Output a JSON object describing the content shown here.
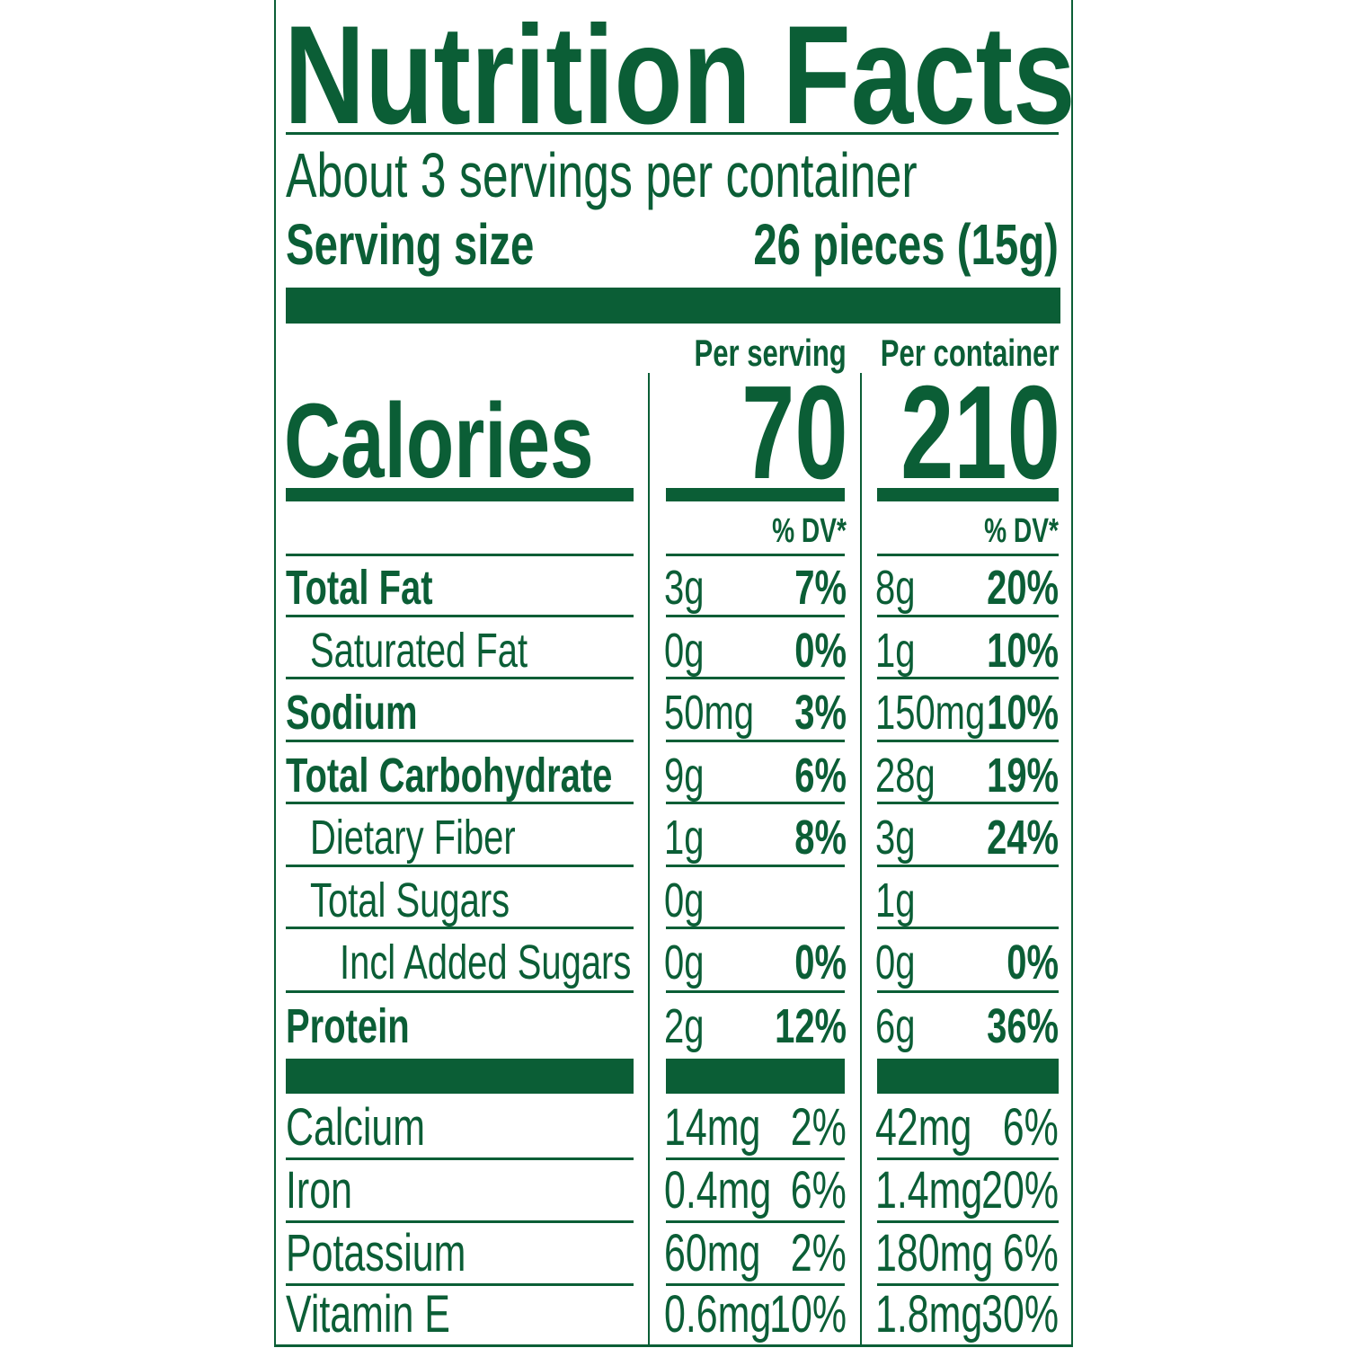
{
  "title": "Nutrition Facts",
  "servings_per_container": "About 3 servings per container",
  "serving_size": {
    "label": "Serving size",
    "value": "26 pieces (15g)"
  },
  "columns": {
    "per_serving": {
      "header": "Per serving",
      "calories": "70",
      "dv_header": "% DV*"
    },
    "per_container": {
      "header": "Per container",
      "calories": "210",
      "dv_header": "% DV*"
    }
  },
  "calories_label": "Calories",
  "nutrients": [
    {
      "name": "Total Fat",
      "bold": true,
      "indent": 0,
      "serving_amount": "3g",
      "serving_dv": "7%",
      "container_amount": "8g",
      "container_dv": "20%"
    },
    {
      "name": "Saturated Fat",
      "bold": false,
      "indent": 1,
      "serving_amount": "0g",
      "serving_dv": "0%",
      "container_amount": "1g",
      "container_dv": "10%"
    },
    {
      "name": "Sodium",
      "bold": true,
      "indent": 0,
      "serving_amount": "50mg",
      "serving_dv": "3%",
      "container_amount": "150mg",
      "container_dv": "10%"
    },
    {
      "name": "Total Carbohydrate",
      "bold": true,
      "indent": 0,
      "serving_amount": "9g",
      "serving_dv": "6%",
      "container_amount": "28g",
      "container_dv": "19%"
    },
    {
      "name": "Dietary Fiber",
      "bold": false,
      "indent": 1,
      "serving_amount": "1g",
      "serving_dv": "8%",
      "container_amount": "3g",
      "container_dv": "24%"
    },
    {
      "name": "Total Sugars",
      "bold": false,
      "indent": 1,
      "serving_amount": "0g",
      "serving_dv": "",
      "container_amount": "1g",
      "container_dv": ""
    },
    {
      "name": "Incl Added Sugars",
      "bold": false,
      "indent": 2,
      "serving_amount": "0g",
      "serving_dv": "0%",
      "container_amount": "0g",
      "container_dv": "0%"
    },
    {
      "name": "Protein",
      "bold": true,
      "indent": 0,
      "serving_amount": "2g",
      "serving_dv": "12%",
      "container_amount": "6g",
      "container_dv": "36%"
    }
  ],
  "vitamins": [
    {
      "name": "Calcium",
      "serving_amount": "14mg",
      "serving_dv": "2%",
      "container_amount": "42mg",
      "container_dv": "6%"
    },
    {
      "name": "Iron",
      "serving_amount": "0.4mg",
      "serving_dv": "6%",
      "container_amount": "1.4mg",
      "container_dv": "20%"
    },
    {
      "name": "Potassium",
      "serving_amount": "60mg",
      "serving_dv": "2%",
      "container_amount": "180mg",
      "container_dv": "6%"
    },
    {
      "name": "Vitamin E",
      "serving_amount": "0.6mg",
      "serving_dv": "10%",
      "container_amount": "1.8mg",
      "container_dv": "30%"
    }
  ],
  "colors": {
    "ink": "#0b5e36",
    "background": "#ffffff"
  }
}
